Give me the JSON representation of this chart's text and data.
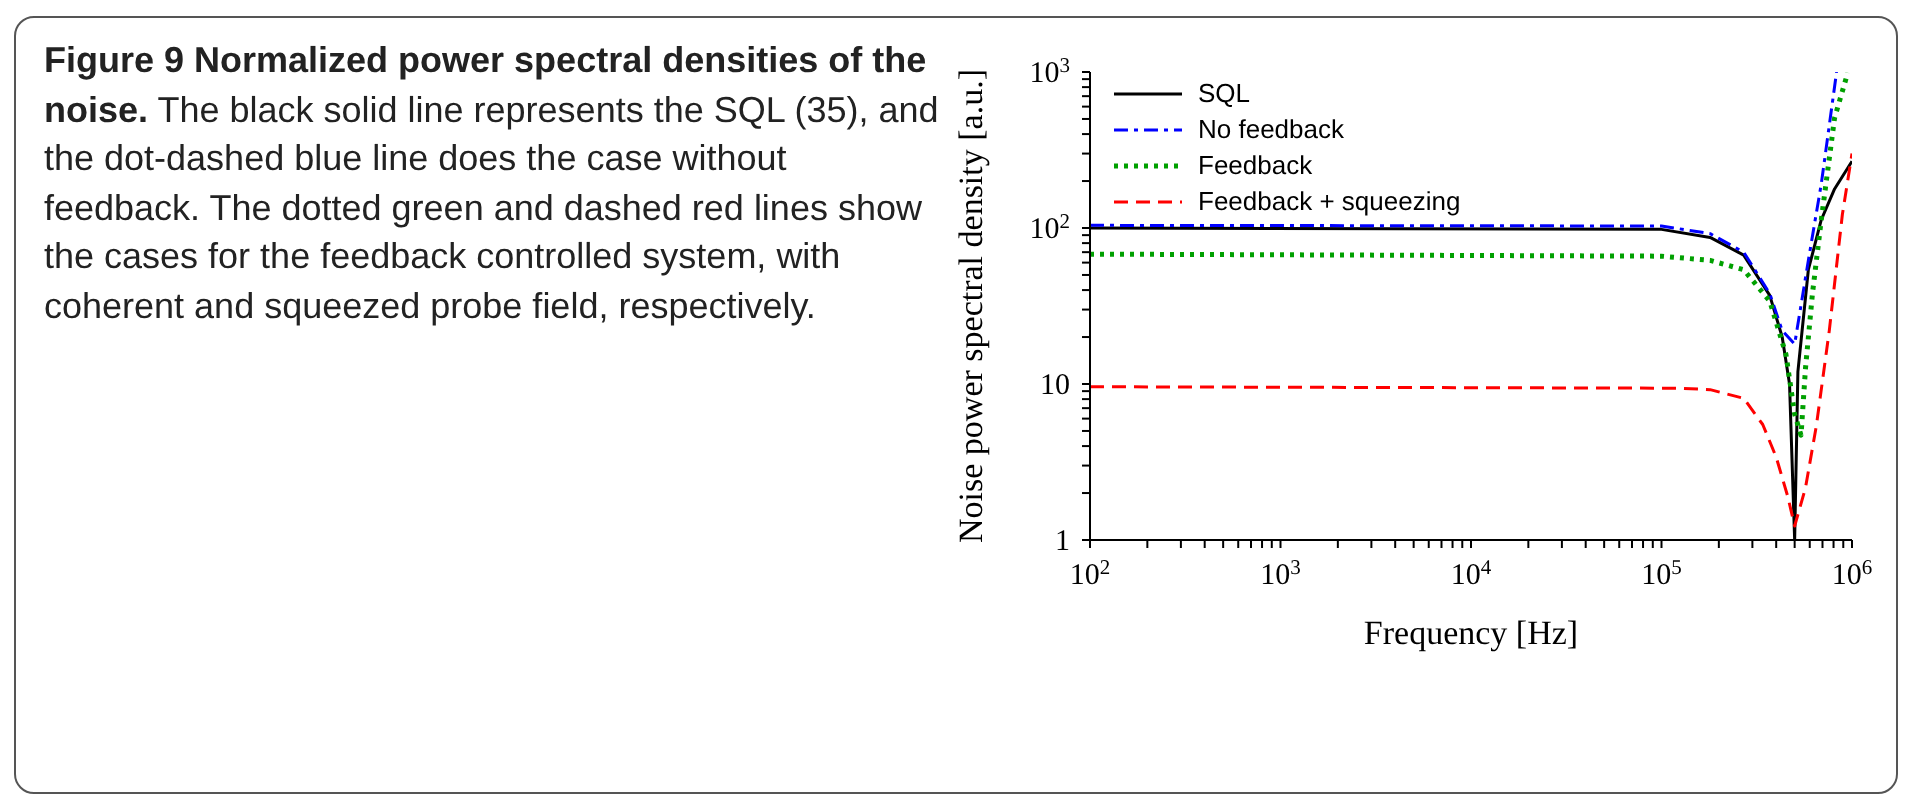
{
  "chart_data": {
    "type": "line",
    "title": "Figure 9  Normalized power spectral densities of the noise.",
    "annotations": [
      "The black solid line represents the SQL (35), and the dot-dashed blue line does the case without feedback. The dotted green and dashed red lines show the cases for the feedback controlled system, with coherent and squeezed probe field, respectively."
    ],
    "xlabel": "Frequency [Hz]",
    "ylabel": "Noise power spectral density [a.u.]",
    "log": "xy",
    "legend": "top left",
    "marker": "none",
    "xlim": [
      100,
      1000000
    ],
    "ylim": [
      1,
      1000
    ],
    "xticks": [
      {
        "value": 100,
        "label": "10$^{2}$"
      },
      {
        "value": 200,
        "label": null
      },
      {
        "value": 300,
        "label": null
      },
      {
        "value": 400,
        "label": null
      },
      {
        "value": 500,
        "label": null
      },
      {
        "value": 600,
        "label": null
      },
      {
        "value": 700,
        "label": null
      },
      {
        "value": 800,
        "label": null
      },
      {
        "value": 900,
        "label": null
      },
      {
        "value": 1000,
        "label": "10$^{3}$"
      },
      {
        "value": 2000,
        "label": null
      },
      {
        "value": 3000,
        "label": null
      },
      {
        "value": 4000,
        "label": null
      },
      {
        "value": 5000,
        "label": null
      },
      {
        "value": 6000,
        "label": null
      },
      {
        "value": 7000,
        "label": null
      },
      {
        "value": 8000,
        "label": null
      },
      {
        "value": 9000,
        "label": null
      },
      {
        "value": 10000,
        "label": "10$^{4}$"
      },
      {
        "value": 20000,
        "label": null
      },
      {
        "value": 30000,
        "label": null
      },
      {
        "value": 40000,
        "label": null
      },
      {
        "value": 50000,
        "label": null
      },
      {
        "value": 60000,
        "label": null
      },
      {
        "value": 70000,
        "label": null
      },
      {
        "value": 80000,
        "label": null
      },
      {
        "value": 90000,
        "label": null
      },
      {
        "value": 100000,
        "label": "10$^{5}$"
      },
      {
        "value": 200000,
        "label": null
      },
      {
        "value": 300000,
        "label": null
      },
      {
        "value": 400000,
        "label": null
      },
      {
        "value": 500000,
        "label": null
      },
      {
        "value": 600000,
        "label": null
      },
      {
        "value": 700000,
        "label": null
      },
      {
        "value": 800000,
        "label": null
      },
      {
        "value": 900000,
        "label": null
      },
      {
        "value": 1000000,
        "label": "10$^{6}$"
      }
    ],
    "yticks": [
      1,
      {
        "value": 2,
        "label": null
      },
      {
        "value": 3,
        "label": null
      },
      {
        "value": 4,
        "label": null
      },
      {
        "value": 5,
        "label": null
      },
      {
        "value": 6,
        "label": null
      },
      {
        "value": 7,
        "label": null
      },
      {
        "value": 8,
        "label": null
      },
      {
        "value": 9,
        "label": null
      },
      10,
      {
        "value": 20,
        "label": null
      },
      {
        "value": 30,
        "label": null
      },
      {
        "value": 40,
        "label": null
      },
      {
        "value": 50,
        "label": null
      },
      {
        "value": 60,
        "label": null
      },
      {
        "value": 70,
        "label": null
      },
      {
        "value": 80,
        "label": null
      },
      {
        "value": 90,
        "label": null
      },
      {
        "value": 100,
        "label": "10$^{2}$"
      },
      {
        "value": 200,
        "label": null
      },
      {
        "value": 300,
        "label": null
      },
      {
        "value": 400,
        "label": null
      },
      {
        "value": 500,
        "label": null
      },
      {
        "value": 600,
        "label": null
      },
      {
        "value": 700,
        "label": null
      },
      {
        "value": 800,
        "label": null
      },
      {
        "value": 900,
        "label": null
      },
      {
        "value": 1000,
        "label": "10$^{3}$"
      }
    ],
    "series": [
      {
        "name": "SQL",
        "color": "#000000",
        "line_style": "solid",
        "x": [
          100,
          100000,
          180000,
          270000,
          370000,
          430000,
          470000,
          500000,
          520000,
          590000,
          690000,
          810000,
          1000000
        ],
        "values": [
          100,
          98,
          87,
          67,
          37,
          20,
          10,
          1,
          12,
          54,
          113,
          178,
          268
        ]
      },
      {
        "name": "No feedback",
        "color": "#0000ff",
        "line_style": "dashdot",
        "x": [
          100,
          100000,
          180000,
          270000,
          370000,
          430000,
          500000,
          590000,
          690000,
          830000
        ],
        "values": [
          104,
          103,
          92,
          70,
          38,
          22,
          18,
          62,
          192,
          1000
        ]
      },
      {
        "name": "Feedback",
        "color": "#00a000",
        "line_style": "dotted",
        "x": [
          100,
          100000,
          180000,
          270000,
          370000,
          450000,
          500000,
          540000,
          570000,
          620000,
          690000,
          810000,
          950000
        ],
        "values": [
          68,
          66,
          62,
          54,
          34,
          15.5,
          6.4,
          4.7,
          12.6,
          38,
          113,
          507,
          990
        ]
      },
      {
        "name": "Feedback + squeezing",
        "color": "#ff0000",
        "line_style": "dashed",
        "x": [
          100,
          120000,
          180000,
          270000,
          340000,
          400000,
          460000,
          500000,
          570000,
          650000,
          760000,
          890000,
          1000000
        ],
        "values": [
          9.6,
          9.4,
          9.2,
          8.1,
          5.5,
          3.4,
          1.9,
          1.23,
          2.16,
          5.4,
          22,
          122,
          300
        ]
      }
    ]
  }
}
